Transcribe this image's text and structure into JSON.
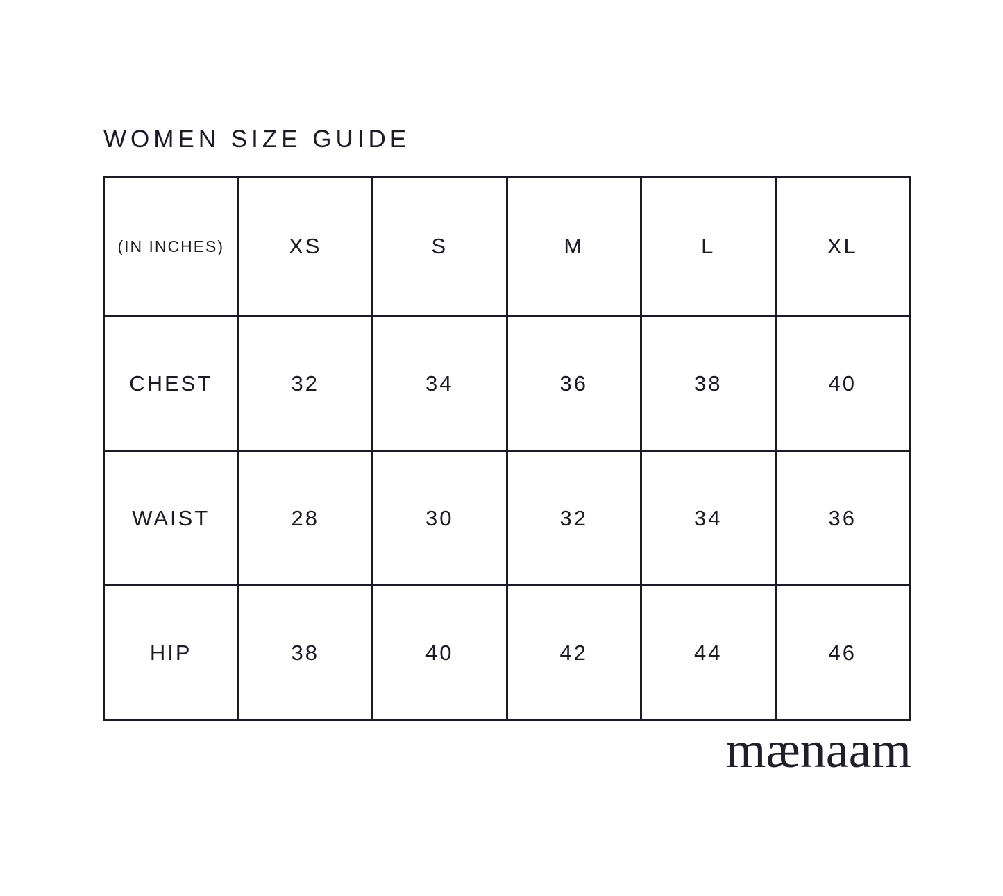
{
  "page": {
    "title": "WOMEN SIZE GUIDE",
    "brand_wordmark": "mænaam",
    "background_color": "#ffffff",
    "text_color": "#1d1a26",
    "border_color": "#1d1a26"
  },
  "table": {
    "unit_label": "(IN INCHES)"
  },
  "chart_data": {
    "type": "table",
    "title": "WOMEN SIZE GUIDE",
    "unit": "inches",
    "columns": [
      "XS",
      "S",
      "M",
      "L",
      "XL"
    ],
    "rows": [
      {
        "measurement": "CHEST",
        "values": [
          32,
          34,
          36,
          38,
          40
        ]
      },
      {
        "measurement": "WAIST",
        "values": [
          28,
          30,
          32,
          34,
          36
        ]
      },
      {
        "measurement": "HIP",
        "values": [
          38,
          40,
          42,
          44,
          46
        ]
      }
    ]
  }
}
